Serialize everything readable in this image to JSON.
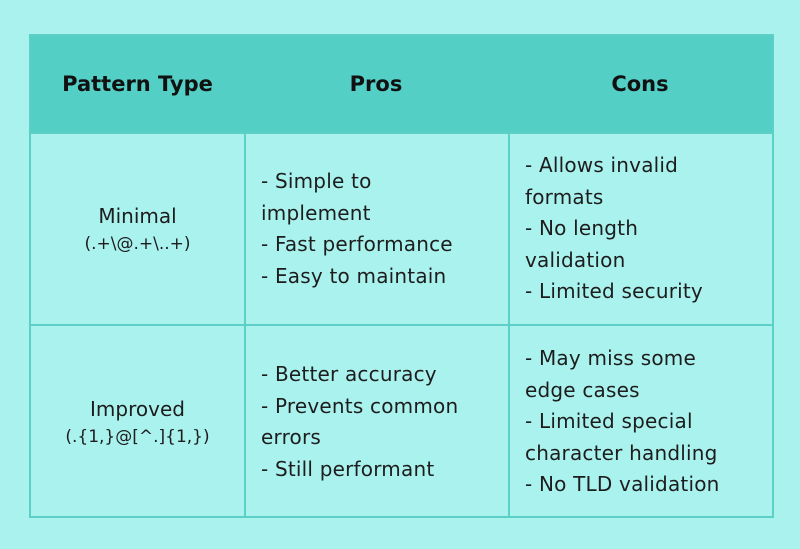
{
  "header": {
    "pattern_type": "Pattern Type",
    "pros": "Pros",
    "cons": "Cons"
  },
  "rows": [
    {
      "name": "Minimal",
      "pattern": "(.+\\@.+\\..+)",
      "pros": [
        "- Simple to",
        "implement",
        "- Fast performance",
        "- Easy to maintain"
      ],
      "cons": [
        "- Allows invalid",
        "formats",
        "- No length",
        "validation",
        "- Limited security"
      ]
    },
    {
      "name": "Improved",
      "pattern": "(.{1,}@[^.]{1,})",
      "pros": [
        "- Better accuracy",
        "- Prevents common",
        "errors",
        "- Still performant"
      ],
      "cons": [
        "- May miss some",
        "edge cases",
        "- Limited special",
        "character handling",
        "- No TLD validation"
      ]
    }
  ]
}
